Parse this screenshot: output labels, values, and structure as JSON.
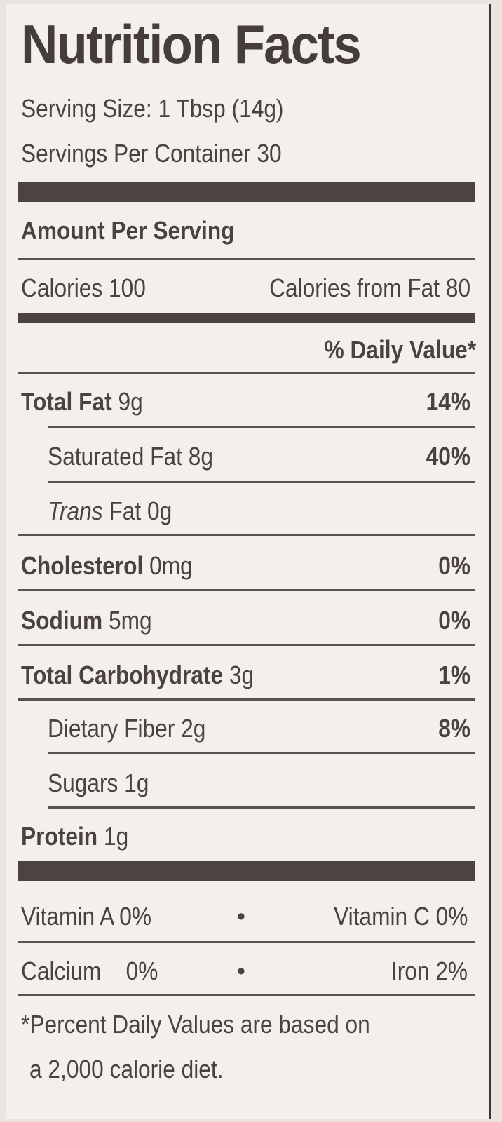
{
  "title": "Nutrition Facts",
  "serving_size": "Serving Size: 1 Tbsp (14g)",
  "servings_per_container": "Servings Per Container 30",
  "amount_per_serving": "Amount Per Serving",
  "calories": "Calories 100",
  "calories_from_fat": "Calories from Fat 80",
  "daily_value_header": "% Daily Value*",
  "nutrients": {
    "total_fat": {
      "label": "Total Fat",
      "amount": "9g",
      "dv": "14%"
    },
    "saturated_fat": {
      "label": "Saturated Fat 8g",
      "dv": "40%"
    },
    "trans_fat": {
      "label_italic": "Trans",
      "label_rest": "Fat  0g"
    },
    "cholesterol": {
      "label": "Cholesterol",
      "amount": "0mg",
      "dv": "0%"
    },
    "sodium": {
      "label": "Sodium",
      "amount": "5mg",
      "dv": "0%"
    },
    "total_carb": {
      "label": "Total Carbohydrate",
      "amount": "3g",
      "dv": "1%"
    },
    "dietary_fiber": {
      "label": "Dietary Fiber 2g",
      "dv": "8%"
    },
    "sugars": {
      "label": "Sugars 1g"
    },
    "protein": {
      "label": "Protein",
      "amount": "1g"
    }
  },
  "vitamins": {
    "vitamin_a": "Vitamin A  0%",
    "vitamin_c": "Vitamin C  0%",
    "calcium": "Calcium    0%",
    "iron": "Iron  2%",
    "separator": "•"
  },
  "footnote": {
    "line1": "*Percent Daily Values are based on",
    "line2": "a 2,000 calorie diet."
  }
}
